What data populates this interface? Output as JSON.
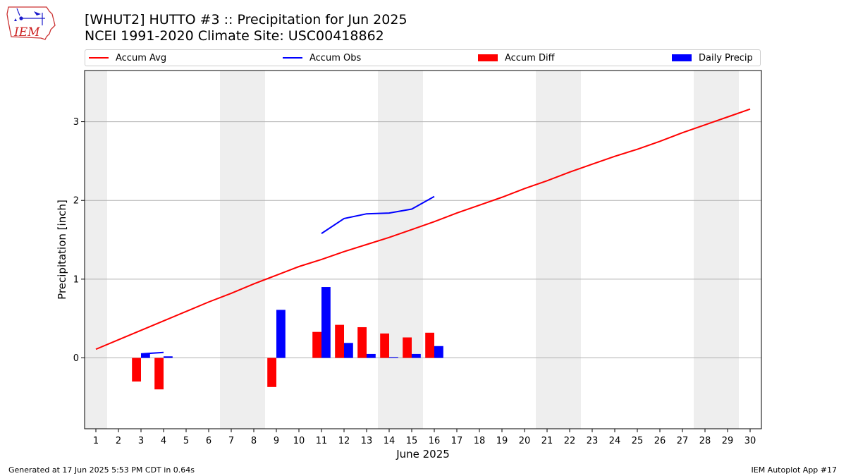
{
  "title_line1": "[WHUT2] HUTTO #3 :: Precipitation for Jun 2025",
  "title_line2": "NCEI 1991-2020 Climate Site: USC00418862",
  "logo_text": "IEM",
  "footer_left": "Generated at 17 Jun 2025 5:53 PM CDT in 0.64s",
  "footer_right": "IEM Autoplot App #17",
  "colors": {
    "accum_avg": "#ff0000",
    "accum_obs": "#0000ff",
    "accum_diff": "#ff0000",
    "daily_precip": "#0000ff",
    "weekend_band": "#eeeeee",
    "grid": "#b0b0b0"
  },
  "chart_data": {
    "type": "bar",
    "title": "[WHUT2] HUTTO #3 :: Precipitation for Jun 2025",
    "subtitle": "NCEI 1991-2020 Climate Site: USC00418862",
    "xlabel": "June 2025",
    "ylabel": "Precipitation [inch]",
    "x": [
      1,
      2,
      3,
      4,
      5,
      6,
      7,
      8,
      9,
      10,
      11,
      12,
      13,
      14,
      15,
      16,
      17,
      18,
      19,
      20,
      21,
      22,
      23,
      24,
      25,
      26,
      27,
      28,
      29,
      30
    ],
    "xlim": [
      0.5,
      30.5
    ],
    "ylim": [
      -0.9,
      3.65
    ],
    "yticks": [
      0,
      1,
      2,
      3
    ],
    "grid": "horizontal",
    "legend_position": "top",
    "weekend_bands": [
      [
        0.5,
        1.5
      ],
      [
        6.5,
        8.5
      ],
      [
        13.5,
        15.5
      ],
      [
        20.5,
        22.5
      ],
      [
        27.5,
        29.5
      ]
    ],
    "series": [
      {
        "name": "Accum Avg",
        "type": "line",
        "x": [
          1,
          2,
          3,
          4,
          5,
          6,
          7,
          8,
          9,
          10,
          11,
          12,
          13,
          14,
          15,
          16,
          17,
          18,
          19,
          20,
          21,
          22,
          23,
          24,
          25,
          26,
          27,
          28,
          29,
          30
        ],
        "values": [
          0.11,
          0.23,
          0.35,
          0.47,
          0.59,
          0.71,
          0.82,
          0.94,
          1.05,
          1.16,
          1.25,
          1.35,
          1.44,
          1.53,
          1.63,
          1.73,
          1.84,
          1.94,
          2.04,
          2.15,
          2.25,
          2.36,
          2.46,
          2.56,
          2.65,
          2.75,
          2.86,
          2.96,
          3.06,
          3.16
        ]
      },
      {
        "name": "Accum Obs",
        "type": "line",
        "x": [
          3,
          4,
          11,
          12,
          13,
          14,
          15,
          16
        ],
        "values": [
          0.05,
          0.07,
          1.58,
          1.77,
          1.83,
          1.84,
          1.89,
          2.05
        ]
      },
      {
        "name": "Accum Diff",
        "type": "bar",
        "x": [
          3,
          4,
          9,
          11,
          12,
          13,
          14,
          15,
          16
        ],
        "values": [
          -0.3,
          -0.4,
          -0.37,
          0.33,
          0.42,
          0.39,
          0.31,
          0.26,
          0.32
        ]
      },
      {
        "name": "Daily Precip",
        "type": "bar",
        "x": [
          3,
          4,
          9,
          11,
          12,
          13,
          14,
          15,
          16
        ],
        "values": [
          0.05,
          0.02,
          0.61,
          0.9,
          0.19,
          0.05,
          0.01,
          0.05,
          0.15
        ]
      }
    ]
  }
}
